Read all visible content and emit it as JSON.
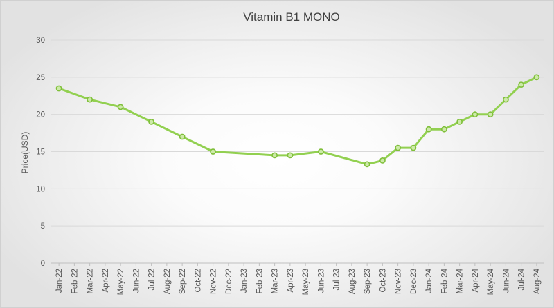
{
  "chart_data": {
    "type": "line",
    "title": "Vitamin B1 MONO",
    "xlabel": "",
    "ylabel": "Price(USD)",
    "ylim": [
      0,
      30
    ],
    "yticks": [
      0,
      5,
      10,
      15,
      20,
      25,
      30
    ],
    "grid": true,
    "legend": "none",
    "line_color": "#92d050",
    "marker_color": "#7fbf3a",
    "categories": [
      "Jan-22",
      "Feb-22",
      "Mar-22",
      "Apr-22",
      "May-22",
      "Jun-22",
      "Jul-22",
      "Aug-22",
      "Sep-22",
      "Oct-22",
      "Nov-22",
      "Dec-22",
      "Jan-23",
      "Feb-23",
      "Mar-23",
      "Apr-23",
      "May-23",
      "Jun-23",
      "Jul-23",
      "Aug-23",
      "Sep-23",
      "Oct-23",
      "Nov-23",
      "Dec-23",
      "Jan-24",
      "Feb-24",
      "Mar-24",
      "Apr-24",
      "May-24",
      "Jun-24",
      "Jul-24",
      "Aug-24"
    ],
    "series": [
      {
        "name": "Vitamin B1 MONO",
        "points": [
          {
            "x": "Jan-22",
            "y": 23.5
          },
          {
            "x": "Mar-22",
            "y": 22
          },
          {
            "x": "May-22",
            "y": 21
          },
          {
            "x": "Jul-22",
            "y": 19
          },
          {
            "x": "Sep-22",
            "y": 17
          },
          {
            "x": "Nov-22",
            "y": 15
          },
          {
            "x": "Mar-23",
            "y": 14.5
          },
          {
            "x": "Apr-23",
            "y": 14.5
          },
          {
            "x": "Jun-23",
            "y": 15
          },
          {
            "x": "Sep-23",
            "y": 13.3
          },
          {
            "x": "Oct-23",
            "y": 13.8
          },
          {
            "x": "Nov-23",
            "y": 15.5
          },
          {
            "x": "Dec-23",
            "y": 15.5
          },
          {
            "x": "Jan-24",
            "y": 18
          },
          {
            "x": "Feb-24",
            "y": 18
          },
          {
            "x": "Mar-24",
            "y": 19
          },
          {
            "x": "Apr-24",
            "y": 20
          },
          {
            "x": "May-24",
            "y": 20
          },
          {
            "x": "Jun-24",
            "y": 22
          },
          {
            "x": "Jul-24",
            "y": 24
          },
          {
            "x": "Aug-24",
            "y": 25
          }
        ]
      }
    ]
  }
}
